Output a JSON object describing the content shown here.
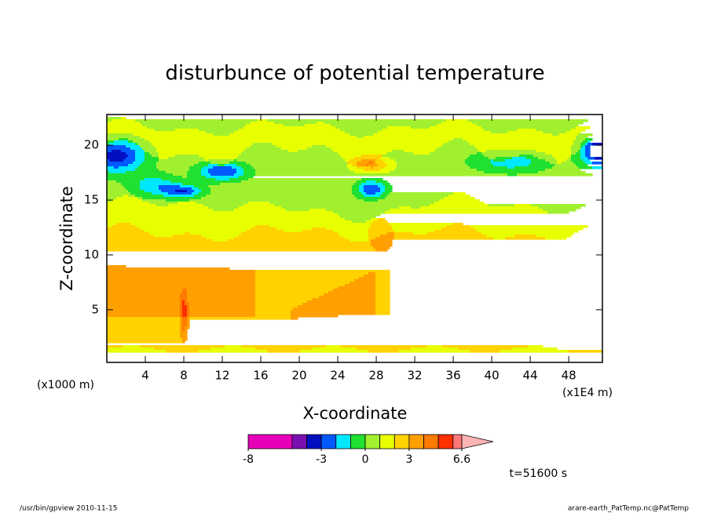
{
  "chart_data": {
    "type": "contour",
    "title": "disturbunce of potential temperature",
    "x_label": "X-coordinate",
    "y_label": "Z-coordinate",
    "x_unit_left": "(x1000 m)",
    "x_unit_right": "(x1E4 m)",
    "xlim": [
      0,
      51.5
    ],
    "xticks": [
      4,
      8,
      12,
      16,
      20,
      24,
      28,
      32,
      36,
      40,
      44,
      48
    ],
    "ylim": [
      0.2,
      22.8
    ],
    "yticks": [
      5,
      10,
      15,
      20
    ],
    "colorbar": {
      "levels": [
        -8,
        -5,
        -4,
        -3,
        -2,
        -1,
        0,
        1,
        2,
        3,
        4,
        5,
        6,
        6.6
      ],
      "colors": [
        "#e800b8",
        "#7a10b0",
        "#0010c0",
        "#0058ff",
        "#00e8ff",
        "#20e030",
        "#a0f030",
        "#e8ff00",
        "#ffd200",
        "#ffa000",
        "#ff7a00",
        "#ff3000",
        "#ff7878"
      ],
      "extend_color": "#ffb4b4",
      "ticks": [
        -8,
        -3,
        0,
        3,
        6.6
      ]
    },
    "time_label": "t=51600 s",
    "footer_left": "/usr/bin/gpview  2010-11-15",
    "footer_right": "arare-earth_PatTemp.nc@PatTemp"
  }
}
